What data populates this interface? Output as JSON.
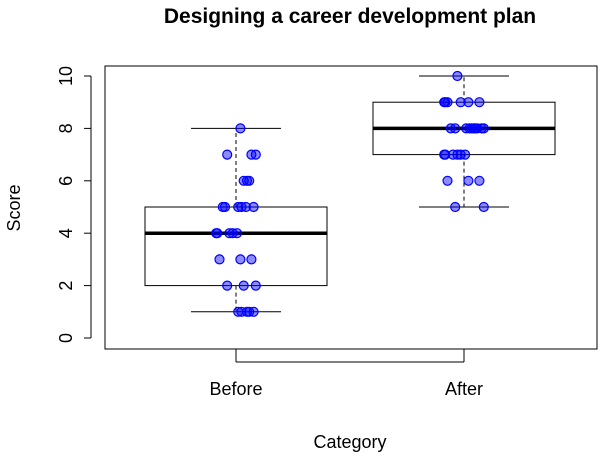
{
  "chart_data": {
    "type": "boxplot",
    "title": "Designing a career development plan",
    "xlabel": "Category",
    "ylabel": "Score",
    "ylim": [
      0,
      10
    ],
    "yticks": [
      0,
      2,
      4,
      6,
      8,
      10
    ],
    "categories": [
      "Before",
      "After"
    ],
    "boxes": [
      {
        "category": "Before",
        "min": 1,
        "q1": 2,
        "median": 4,
        "q3": 5,
        "max": 8
      },
      {
        "category": "After",
        "min": 5,
        "q1": 7,
        "median": 8,
        "q3": 9,
        "max": 10
      }
    ],
    "points": [
      {
        "category": "Before",
        "values": [
          8,
          7,
          7,
          7,
          6,
          6,
          6,
          5,
          5,
          5,
          5,
          5,
          5,
          4,
          4,
          4,
          4,
          4,
          3,
          3,
          3,
          2,
          2,
          2,
          1,
          1,
          1,
          1,
          1
        ]
      },
      {
        "category": "After",
        "values": [
          10,
          9,
          9,
          9,
          9,
          9,
          9,
          8,
          8,
          8,
          8,
          8,
          8,
          8,
          8,
          8,
          8,
          7,
          7,
          7,
          7,
          7,
          7,
          6,
          6,
          6,
          5,
          5
        ]
      }
    ],
    "point_color": "#0000ff",
    "grid": false
  }
}
